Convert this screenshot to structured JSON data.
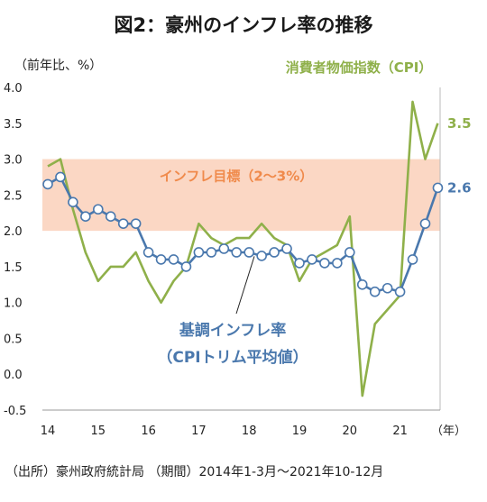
{
  "title": "図2：豪州のインフレ率の推移",
  "source": "（出所）豪州政府統計局 （期間）2014年1-3月～2021年10-12月",
  "chart_data": {
    "type": "line",
    "ylabel": "（前年比、%）",
    "xlabel": "（年）",
    "ylim": [
      -0.5,
      4.0
    ],
    "yticks": [
      "4.0",
      "3.5",
      "3.0",
      "2.5",
      "2.0",
      "1.5",
      "1.0",
      "0.5",
      "0.0",
      "-0.5"
    ],
    "yticks_values": [
      4.0,
      3.5,
      3.0,
      2.5,
      2.0,
      1.5,
      1.0,
      0.5,
      0.0,
      -0.5
    ],
    "x_tick_labels": [
      "14",
      "15",
      "16",
      "17",
      "18",
      "19",
      "20",
      "21"
    ],
    "band": {
      "label": "インフレ目標（2～3%）",
      "low": 2.0,
      "high": 3.0,
      "color": "#fbd7c4"
    },
    "series": [
      {
        "name": "消費者物価指数（CPI）",
        "color": "#8fb04a",
        "end_label": "3.5",
        "values": [
          2.9,
          3.0,
          2.3,
          1.7,
          1.3,
          1.5,
          1.5,
          1.7,
          1.3,
          1.0,
          1.3,
          1.5,
          2.1,
          1.9,
          1.8,
          1.9,
          1.9,
          2.1,
          1.9,
          1.8,
          1.3,
          1.6,
          1.7,
          1.8,
          2.2,
          -0.3,
          0.7,
          0.9,
          1.1,
          3.8,
          3.0,
          3.5
        ]
      },
      {
        "name": "基調インフレ率（CPIトリム平均値）",
        "color": "#4a78ad",
        "end_label": "2.6",
        "values": [
          2.65,
          2.75,
          2.4,
          2.2,
          2.3,
          2.2,
          2.1,
          2.1,
          1.7,
          1.6,
          1.6,
          1.5,
          1.7,
          1.7,
          1.75,
          1.7,
          1.7,
          1.65,
          1.7,
          1.75,
          1.55,
          1.6,
          1.55,
          1.55,
          1.7,
          1.25,
          1.15,
          1.2,
          1.15,
          1.6,
          2.1,
          2.6
        ]
      }
    ]
  }
}
